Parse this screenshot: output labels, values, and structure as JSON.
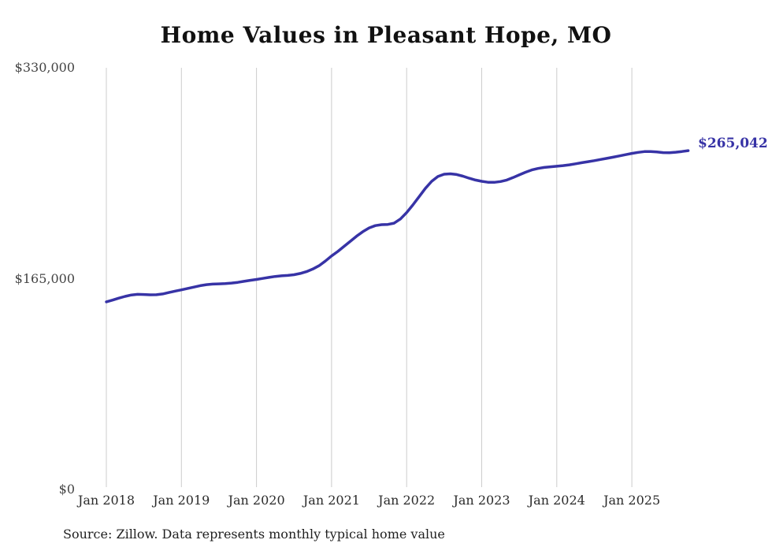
{
  "title": "Home Values in Pleasant Hope, MO",
  "source_note": "Source: Zillow. Data represents monthly typical home value",
  "end_value_label": "$265,042",
  "colors": {
    "line": "#3733a6",
    "end_label": "#3733a6",
    "grid": "#cccccc",
    "title_text": "#111111",
    "axis_text": "#444444"
  },
  "chart_data": {
    "type": "line",
    "title": "Home Values in Pleasant Hope, MO",
    "xlabel": "",
    "ylabel": "",
    "ylim": [
      0,
      330000
    ],
    "y_tick_labels": [
      "$0",
      "$165,000",
      "$330,000"
    ],
    "y_tick_values": [
      0,
      165000,
      330000
    ],
    "x_tick_labels": [
      "Jan 2018",
      "Jan 2019",
      "Jan 2020",
      "Jan 2021",
      "Jan 2022",
      "Jan 2023",
      "Jan 2024",
      "Jan 2025"
    ],
    "x_range": [
      "2018-01",
      "2025-10"
    ],
    "interval": "monthly",
    "grid": "vertical-only",
    "legend": "none",
    "end_value": 265042,
    "series": [
      {
        "name": "Typical home value",
        "monthly_values": [
          146500,
          147900,
          149400,
          150800,
          151900,
          152400,
          152300,
          152000,
          152100,
          152700,
          153800,
          154900,
          155900,
          157000,
          158100,
          159200,
          160000,
          160400,
          160600,
          160800,
          161200,
          161800,
          162600,
          163400,
          164100,
          164900,
          165700,
          166400,
          166900,
          167200,
          167800,
          168800,
          170200,
          172200,
          174800,
          178500,
          182500,
          186000,
          190000,
          194000,
          198000,
          201500,
          204500,
          206300,
          207000,
          207200,
          208200,
          211500,
          216500,
          222500,
          229000,
          235500,
          241000,
          244800,
          246600,
          246900,
          246300,
          245000,
          243400,
          242000,
          241000,
          240300,
          240200,
          240800,
          242000,
          243900,
          246000,
          248100,
          249900,
          251100,
          251900,
          252400,
          252800,
          253300,
          253900,
          254700,
          255600,
          256400,
          257200,
          258100,
          259000,
          259900,
          260900,
          261900,
          262900,
          263700,
          264300,
          264400,
          264000,
          263500,
          263400,
          263800,
          264400,
          265042
        ]
      }
    ]
  }
}
